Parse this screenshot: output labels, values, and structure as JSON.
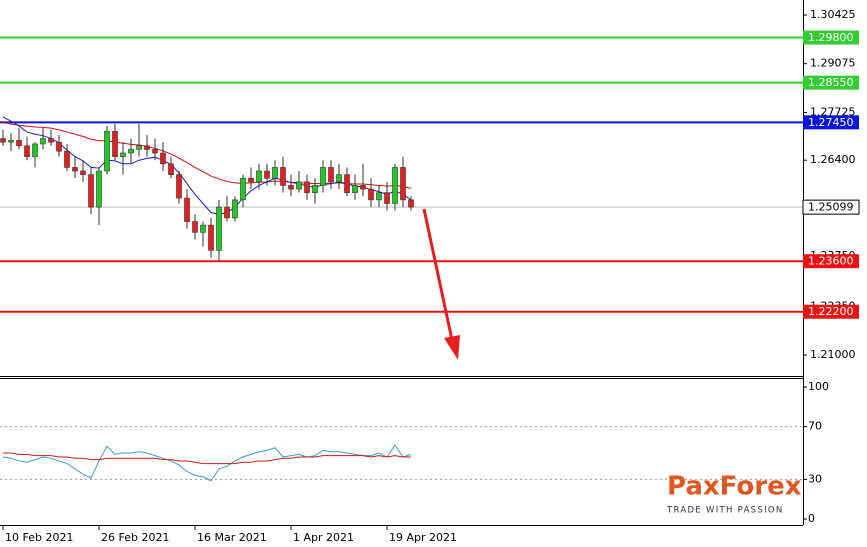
{
  "chart_data": [
    {
      "type": "candlestick",
      "categories": [
        "10 Feb 2021",
        null,
        null,
        null,
        null,
        null,
        null,
        null,
        null,
        null,
        null,
        null,
        "26 Feb 2021",
        null,
        null,
        null,
        null,
        null,
        null,
        null,
        null,
        null,
        null,
        null,
        "16 Mar 2021",
        null,
        null,
        null,
        null,
        null,
        null,
        null,
        null,
        null,
        null,
        null,
        "1 Apr 2021",
        null,
        null,
        null,
        null,
        null,
        null,
        null,
        null,
        null,
        null,
        null,
        "19 Apr 2021",
        null,
        null,
        null
      ],
      "open": [
        1.27,
        1.269,
        1.2695,
        1.268,
        1.265,
        1.2685,
        1.27,
        1.269,
        1.2665,
        1.262,
        1.261,
        1.26,
        1.251,
        1.261,
        1.272,
        1.265,
        1.266,
        1.267,
        1.268,
        1.267,
        1.266,
        1.263,
        1.26,
        1.2535,
        1.247,
        1.244,
        1.246,
        1.239,
        1.251,
        1.248,
        1.253,
        1.259,
        1.258,
        1.261,
        1.259,
        1.262,
        1.257,
        1.256,
        1.258,
        1.255,
        1.257,
        1.262,
        1.258,
        1.26,
        1.255,
        1.257,
        1.256,
        1.253,
        1.255,
        1.252,
        1.262,
        1.253
      ],
      "high": [
        1.2725,
        1.2715,
        1.273,
        1.2705,
        1.269,
        1.273,
        1.2725,
        1.271,
        1.2685,
        1.265,
        1.264,
        1.262,
        1.262,
        1.2735,
        1.274,
        1.269,
        1.27,
        1.274,
        1.271,
        1.27,
        1.269,
        1.265,
        1.261,
        1.256,
        1.249,
        1.247,
        1.248,
        1.253,
        1.254,
        1.254,
        1.26,
        1.262,
        1.263,
        1.263,
        1.264,
        1.265,
        1.26,
        1.261,
        1.26,
        1.259,
        1.264,
        1.264,
        1.263,
        1.262,
        1.26,
        1.263,
        1.259,
        1.257,
        1.258,
        1.263,
        1.265,
        1.254
      ],
      "low": [
        1.268,
        1.2665,
        1.267,
        1.264,
        1.262,
        1.267,
        1.268,
        1.265,
        1.261,
        1.259,
        1.258,
        1.249,
        1.246,
        1.26,
        1.264,
        1.26,
        1.263,
        1.265,
        1.265,
        1.264,
        1.261,
        1.259,
        1.252,
        1.245,
        1.242,
        1.24,
        1.237,
        1.236,
        1.247,
        1.247,
        1.251,
        1.256,
        1.256,
        1.257,
        1.257,
        1.255,
        1.254,
        1.255,
        1.253,
        1.252,
        1.255,
        1.256,
        1.256,
        1.254,
        1.253,
        1.254,
        1.251,
        1.251,
        1.25,
        1.25,
        1.251,
        1.25
      ],
      "close": [
        1.269,
        1.2695,
        1.268,
        1.265,
        1.2685,
        1.27,
        1.269,
        1.2665,
        1.262,
        1.261,
        1.26,
        1.251,
        1.261,
        1.272,
        1.265,
        1.266,
        1.267,
        1.268,
        1.267,
        1.266,
        1.263,
        1.26,
        1.2535,
        1.247,
        1.244,
        1.246,
        1.239,
        1.251,
        1.248,
        1.253,
        1.259,
        1.258,
        1.261,
        1.259,
        1.262,
        1.257,
        1.256,
        1.258,
        1.255,
        1.257,
        1.262,
        1.258,
        1.26,
        1.255,
        1.257,
        1.256,
        1.253,
        1.255,
        1.252,
        1.262,
        1.253,
        1.251
      ],
      "up_color": "#22c822",
      "down_color": "#e81e1e",
      "wick_color": "#333333",
      "series": [
        {
          "color": "#d01010",
          "values": [
            1.2745,
            1.274,
            1.2737,
            1.2734,
            1.2732,
            1.2731,
            1.2729,
            1.2724,
            1.2718,
            1.2712,
            1.2706,
            1.2698,
            1.2694,
            1.2694,
            1.269,
            1.2687,
            1.2684,
            1.2682,
            1.2678,
            1.2673,
            1.2666,
            1.2657,
            1.2646,
            1.2633,
            1.262,
            1.2608,
            1.2596,
            1.2588,
            1.2581,
            1.2577,
            1.2576,
            1.2577,
            1.2579,
            1.258,
            1.2582,
            1.2581,
            1.2579,
            1.2578,
            1.2576,
            1.2575,
            1.2576,
            1.2576,
            1.2577,
            1.2575,
            1.2574,
            1.2574,
            1.2572,
            1.257,
            1.2568,
            1.257,
            1.2567,
            1.2562
          ]
        },
        {
          "color": "#1a1acc",
          "values": [
            1.276,
            1.2748,
            1.2735,
            1.2718,
            1.2712,
            1.2708,
            1.27,
            1.2688,
            1.2668,
            1.265,
            1.2638,
            1.262,
            1.2618,
            1.264,
            1.2638,
            1.263,
            1.263,
            1.264,
            1.2645,
            1.2648,
            1.264,
            1.2628,
            1.2605,
            1.2575,
            1.2545,
            1.252,
            1.2495,
            1.249,
            1.2495,
            1.251,
            1.2535,
            1.2555,
            1.257,
            1.258,
            1.259,
            1.2585,
            1.2578,
            1.2575,
            1.2568,
            1.2565,
            1.2572,
            1.2575,
            1.258,
            1.2575,
            1.2568,
            1.2566,
            1.2558,
            1.2553,
            1.2545,
            1.2555,
            1.2545,
            1.253
          ]
        }
      ],
      "ylim": [
        1.20418,
        1.30841
      ],
      "yticks": [
        1.30425,
        1.29075,
        1.27725,
        {
          "value": 1.264,
          "label": "1.26400"
        },
        {
          "value": 1.2375,
          "label": "1.23750"
        },
        {
          "value": 1.2235,
          "label": "1.22350"
        },
        {
          "value": 1.21,
          "label": "1.21000"
        }
      ],
      "levels": [
        {
          "value": 1.298,
          "label": "1.29800",
          "color": "#33cc33"
        },
        {
          "value": 1.2855,
          "label": "1.28550",
          "color": "#33cc33"
        },
        {
          "value": 1.2745,
          "label": "1.27450",
          "color": "#0a14dc"
        },
        {
          "value": 1.236,
          "label": "1.23600",
          "color": "#ee1111"
        },
        {
          "value": 1.222,
          "label": "1.22200",
          "color": "#ee1111"
        }
      ],
      "last_price": 1.25099
    },
    {
      "type": "line",
      "series": [
        {
          "color": "#3a9ad9",
          "values": [
            47,
            46,
            44,
            43,
            45,
            47,
            46,
            44,
            42,
            38,
            34,
            31,
            44,
            55,
            49,
            50,
            50,
            51,
            50,
            48,
            46,
            44,
            41,
            36,
            33,
            32,
            29,
            38,
            40,
            44,
            47,
            49,
            51,
            52,
            54,
            47,
            48,
            49,
            47,
            48,
            52,
            51,
            51,
            50,
            49,
            48,
            48,
            50,
            47,
            56,
            47,
            49
          ]
        },
        {
          "color": "#c81818",
          "values": [
            50,
            50,
            49,
            49,
            48,
            48,
            48,
            47,
            47,
            46,
            46,
            45,
            45,
            46,
            46,
            46,
            46,
            46,
            46,
            46,
            45,
            45,
            44,
            44,
            43,
            42,
            42,
            42,
            42,
            42,
            43,
            43,
            44,
            44,
            45,
            46,
            46,
            47,
            47,
            47,
            48,
            48,
            48,
            48,
            48,
            48,
            47,
            48,
            47,
            48,
            47,
            47
          ]
        }
      ],
      "ylim": [
        -4.5,
        106.8
      ],
      "yticks": [
        100,
        70,
        30,
        0
      ],
      "levels": [
        70,
        30
      ]
    }
  ],
  "logo": {
    "name": "PaxForex",
    "tagline": "TRADE WITH PASSION"
  }
}
